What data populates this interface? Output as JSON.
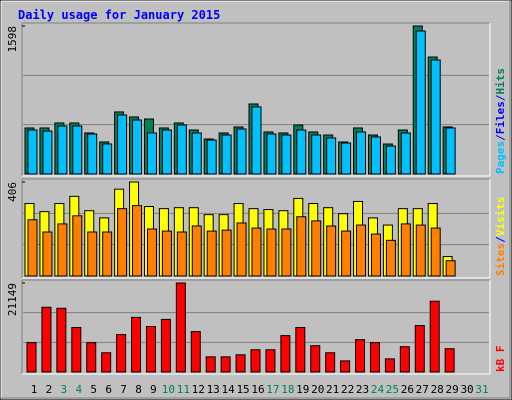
{
  "title": "Daily usage for January 2015",
  "legend_separator": "/",
  "chart_data": [
    {
      "type": "bar",
      "ylim": [
        0,
        1598
      ],
      "yticks": [
        1598
      ],
      "series": [
        {
          "name": "Hits",
          "color": "#00805c",
          "values": [
            497,
            497,
            551,
            551,
            443,
            346,
            670,
            616,
            594,
            497,
            551,
            475,
            378,
            443,
            508,
            756,
            454,
            443,
            529,
            454,
            421,
            346,
            497,
            421,
            324,
            475,
            1598,
            1263,
            508,
            null,
            null
          ]
        },
        {
          "name": "Files",
          "color": "#0000ff",
          "values": [
            null,
            null,
            null,
            null,
            null,
            null,
            null,
            null,
            null,
            null,
            null,
            null,
            null,
            null,
            null,
            null,
            null,
            null,
            null,
            null,
            null,
            null,
            null,
            null,
            null,
            null,
            null,
            null,
            null,
            null,
            null
          ]
        },
        {
          "name": "Pages",
          "color": "#00c0ff",
          "values": [
            475,
            464,
            518,
            518,
            432,
            324,
            637,
            583,
            443,
            475,
            529,
            443,
            367,
            421,
            486,
            724,
            432,
            421,
            475,
            421,
            389,
            335,
            454,
            400,
            302,
            443,
            1544,
            1231,
            497,
            null,
            null
          ]
        }
      ]
    },
    {
      "type": "bar",
      "ylim": [
        0,
        406
      ],
      "yticks": [
        406
      ],
      "series": [
        {
          "name": "Visits",
          "color": "#ffff00",
          "values": [
            313,
            278,
            313,
            344,
            282,
            251,
            375,
            406,
            300,
            291,
            295,
            295,
            265,
            265,
            313,
            291,
            287,
            282,
            335,
            313,
            295,
            269,
            322,
            251,
            220,
            291,
            291,
            313,
            84,
            null,
            null
          ]
        },
        {
          "name": "Sites",
          "color": "#ff8000",
          "values": [
            243,
            190,
            225,
            260,
            190,
            190,
            291,
            304,
            203,
            194,
            190,
            216,
            194,
            198,
            229,
            207,
            203,
            203,
            256,
            238,
            216,
            194,
            220,
            181,
            154,
            225,
            220,
            207,
            66,
            null,
            null
          ]
        }
      ]
    },
    {
      "type": "bar",
      "ylim": [
        0,
        21149
      ],
      "yticks": [
        21149
      ],
      "categories": [
        "1",
        "2",
        "3",
        "4",
        "5",
        "6",
        "7",
        "8",
        "9",
        "10",
        "11",
        "12",
        "13",
        "14",
        "15",
        "16",
        "17",
        "18",
        "19",
        "20",
        "21",
        "22",
        "23",
        "24",
        "25",
        "26",
        "27",
        "28",
        "29",
        "30",
        "31"
      ],
      "category_colors": [
        "#000000",
        "#000000",
        "#00805c",
        "#00805c",
        "#000000",
        "#000000",
        "#000000",
        "#000000",
        "#000000",
        "#00805c",
        "#00805c",
        "#000000",
        "#000000",
        "#000000",
        "#000000",
        "#000000",
        "#00805c",
        "#00805c",
        "#000000",
        "#000000",
        "#000000",
        "#000000",
        "#000000",
        "#00805c",
        "#00805c",
        "#000000",
        "#000000",
        "#000000",
        "#000000",
        "#000000",
        "#00805c"
      ],
      "series": [
        {
          "name": "kB F",
          "color": "#ff0000",
          "values": [
            6970,
            15380,
            15140,
            10570,
            6970,
            4570,
            8890,
            12980,
            10810,
            12500,
            21149,
            9610,
            3600,
            3600,
            4090,
            5290,
            5290,
            8650,
            10570,
            6250,
            4570,
            2640,
            7690,
            6970,
            3120,
            6010,
            11050,
            16820,
            5530,
            null,
            null
          ]
        }
      ]
    }
  ]
}
